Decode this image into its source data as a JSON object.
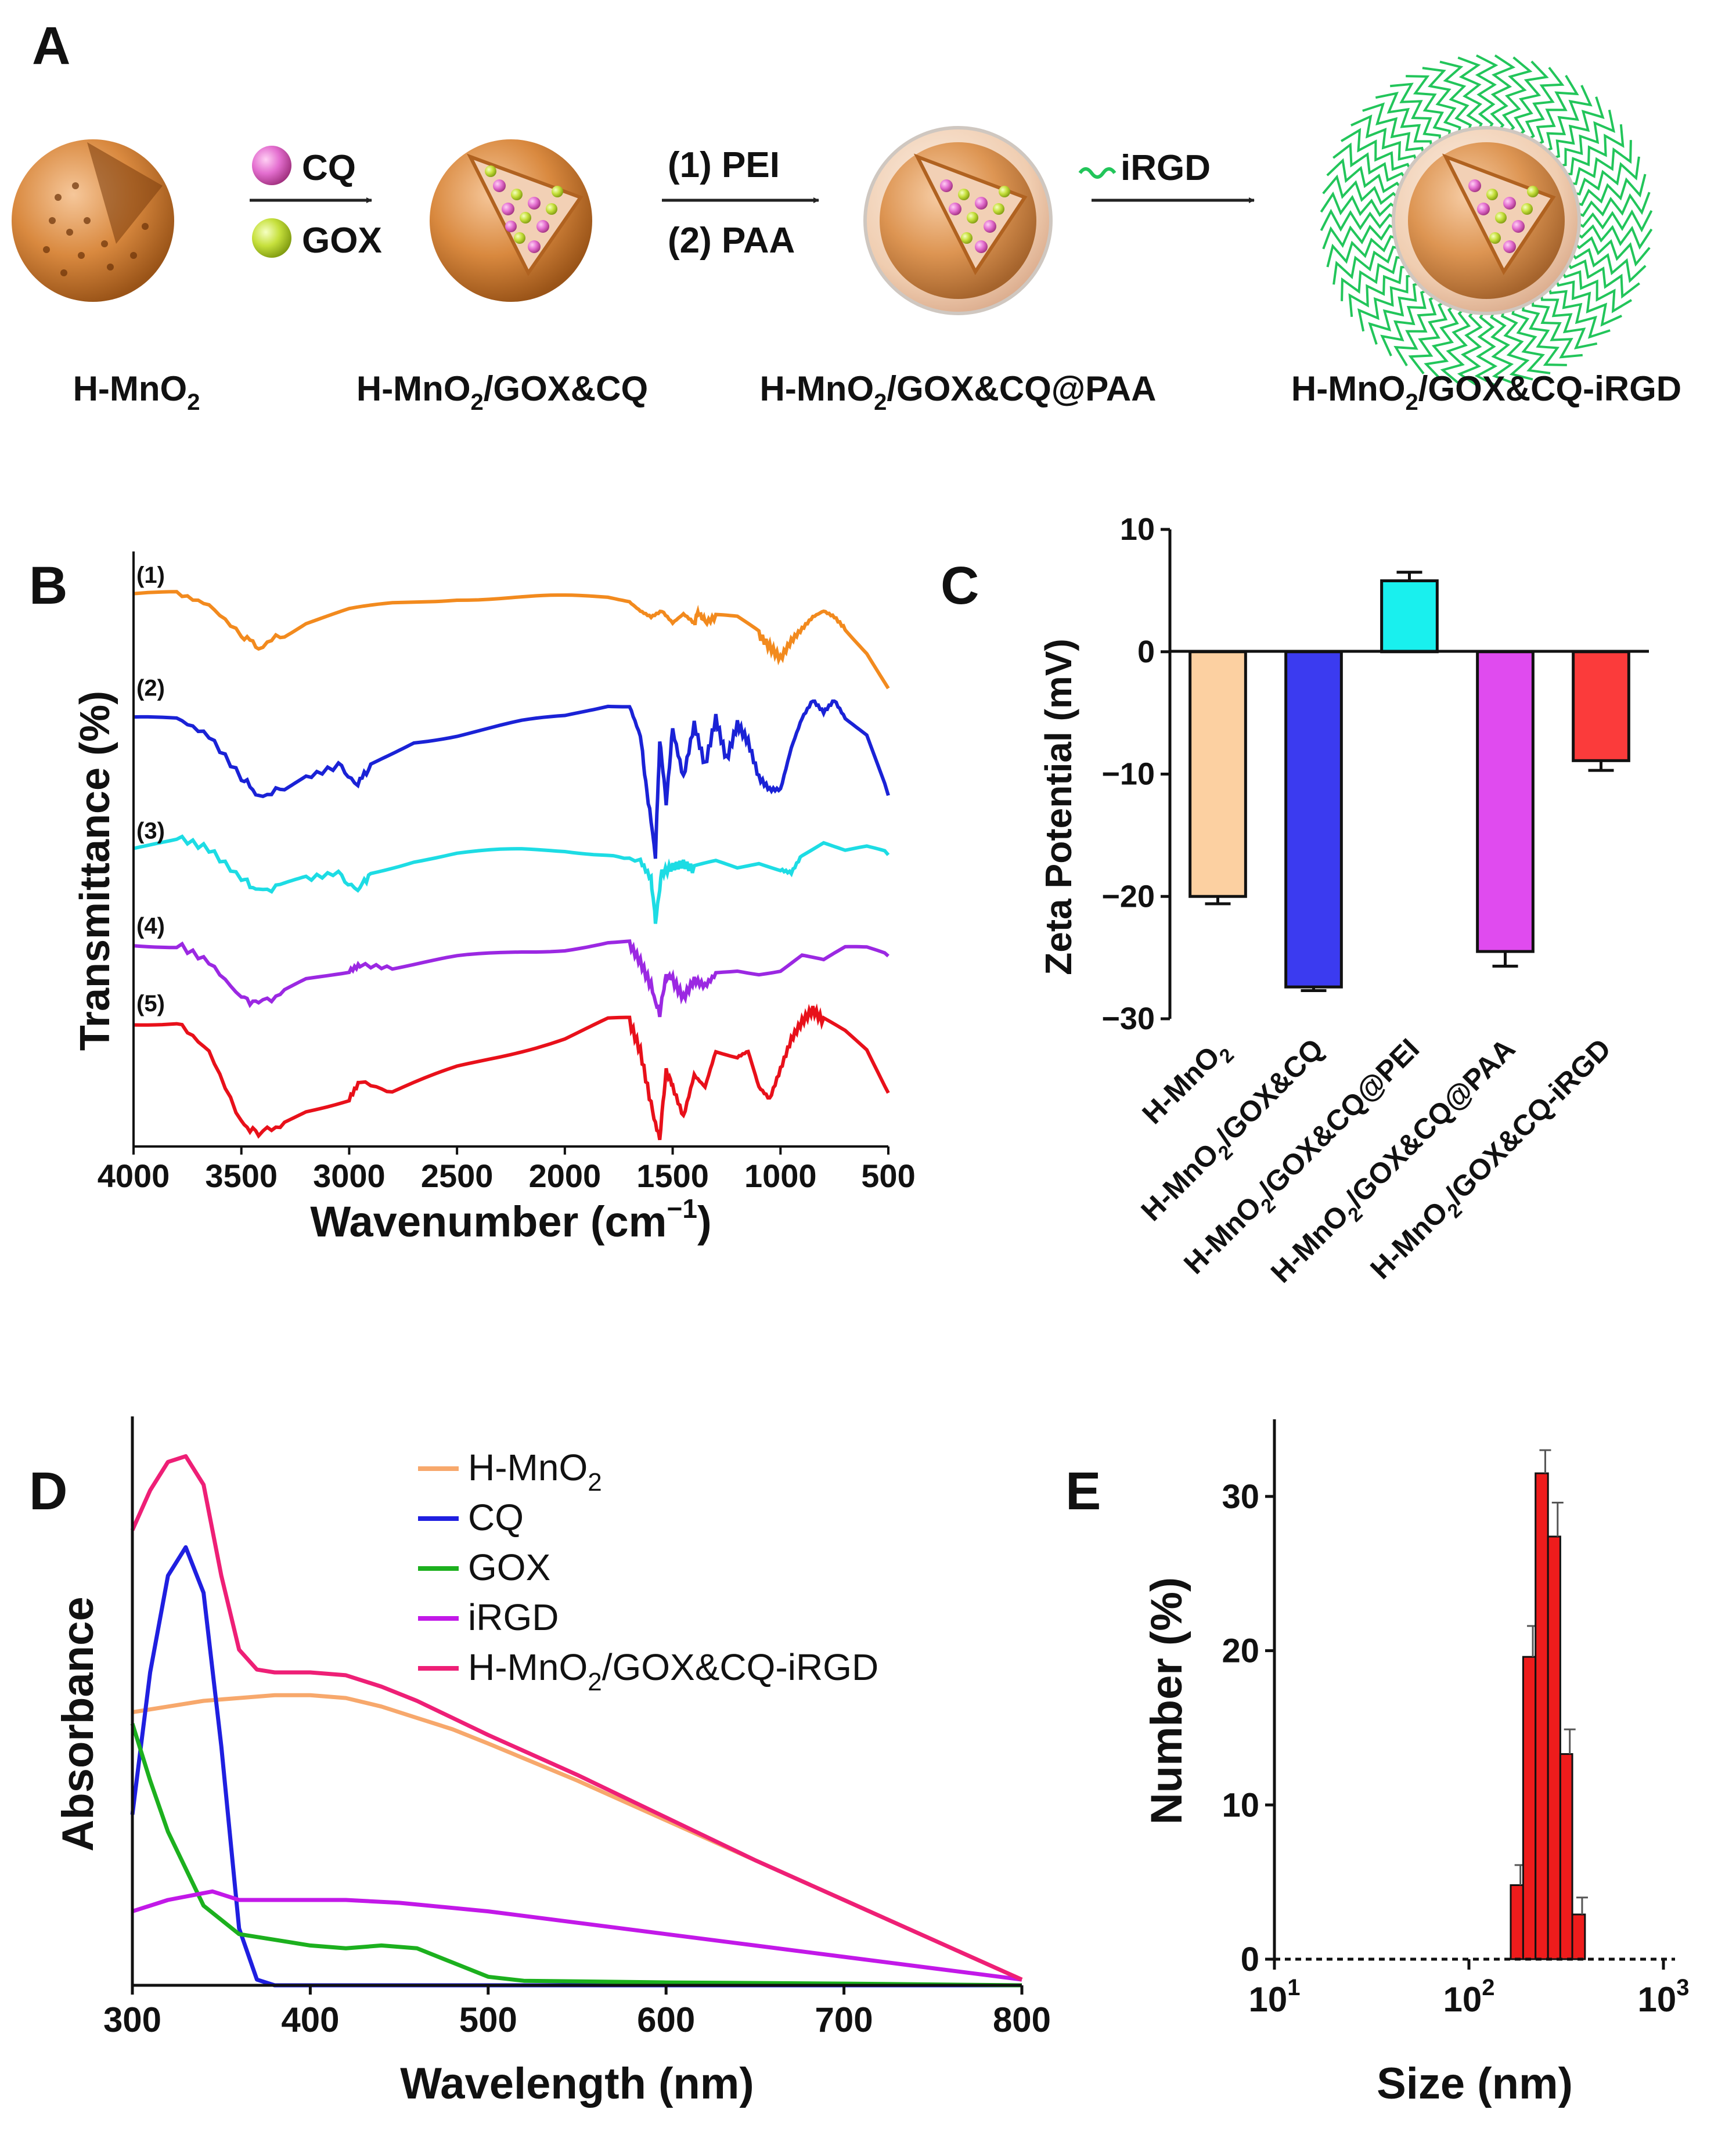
{
  "panel_letters": {
    "a": "A",
    "b": "B",
    "c": "C",
    "d": "D",
    "e": "E"
  },
  "scheme": {
    "reagents_1": {
      "cq": "CQ",
      "gox": "GOX"
    },
    "reagents_2": {
      "line1": "(1) PEI",
      "line2": "(2) PAA"
    },
    "reagents_3": {
      "irgd": "iRGD"
    },
    "particles": [
      {
        "base": "H-MnO",
        "sub": "2",
        "rest": ""
      },
      {
        "base": "H-MnO",
        "sub": "2",
        "rest": "/GOX&CQ"
      },
      {
        "base": "H-MnO",
        "sub": "2",
        "rest": "/GOX&CQ@PAA"
      },
      {
        "base": "H-MnO",
        "sub": "2",
        "rest": "/GOX&CQ-iRGD"
      }
    ],
    "colors": {
      "shell": "#d9893f",
      "cq": "#e46fd0",
      "gox": "#c6e03c",
      "coating": "#f3d6bf",
      "irgd": "#22c55a"
    }
  },
  "chart_data": [
    {
      "panel": "B",
      "type": "line",
      "xlabel": "Wavenumber (cm",
      "xlabel_sup": "−1",
      "xlabel_close": ")",
      "ylabel": "Transmittance (%)",
      "xlim": [
        4000,
        500
      ],
      "x_reversed": true,
      "xticks": [
        4000,
        3500,
        3000,
        2500,
        2000,
        1500,
        1000,
        500
      ],
      "yticks": [],
      "series": [
        {
          "name": "(1)",
          "color": "#f28a1e",
          "offset": 0.93,
          "x": [
            4000,
            3800,
            3650,
            3500,
            3420,
            3300,
            3200,
            3000,
            2800,
            2500,
            2200,
            2000,
            1800,
            1700,
            1650,
            1600,
            1550,
            1500,
            1450,
            1400,
            1380,
            1350,
            1300,
            1200,
            1100,
            1050,
            1000,
            950,
            900,
            850,
            800,
            750,
            700,
            600,
            500
          ],
          "dip": [
            0,
            0,
            0.02,
            0.07,
            0.09,
            0.07,
            0.05,
            0.03,
            0.02,
            0.01,
            0.01,
            0.01,
            0.01,
            0.015,
            0.03,
            0.04,
            0.03,
            0.05,
            0.035,
            0.05,
            0.03,
            0.05,
            0.04,
            0.045,
            0.07,
            0.09,
            0.11,
            0.08,
            0.06,
            0.04,
            0.03,
            0.04,
            0.06,
            0.1,
            0.16
          ]
        },
        {
          "name": "(2)",
          "color": "#1a22d6",
          "offset": 0.74,
          "x": [
            4000,
            3800,
            3650,
            3500,
            3420,
            3300,
            3200,
            3050,
            2960,
            2900,
            2800,
            2700,
            2500,
            2200,
            2000,
            1800,
            1700,
            1650,
            1620,
            1580,
            1560,
            1530,
            1500,
            1450,
            1400,
            1350,
            1300,
            1250,
            1200,
            1150,
            1100,
            1050,
            1000,
            950,
            900,
            850,
            800,
            750,
            700,
            600,
            500
          ],
          "dip": [
            0.02,
            0.02,
            0.05,
            0.12,
            0.15,
            0.14,
            0.12,
            0.1,
            0.13,
            0.1,
            0.08,
            0.06,
            0.05,
            0.03,
            0.02,
            0.0,
            0.0,
            0.05,
            0.14,
            0.25,
            0.06,
            0.16,
            0.04,
            0.12,
            0.03,
            0.1,
            0.02,
            0.09,
            0.03,
            0.06,
            0.12,
            0.14,
            0.14,
            0.07,
            0.02,
            -0.01,
            0.01,
            -0.01,
            0.02,
            0.05,
            0.15
          ]
        },
        {
          "name": "(3)",
          "color": "#1ddce4",
          "offset": 0.5,
          "x": [
            4000,
            3800,
            3650,
            3500,
            3420,
            3300,
            3200,
            3050,
            2960,
            2900,
            2700,
            2500,
            2200,
            2000,
            1800,
            1650,
            1600,
            1580,
            1550,
            1500,
            1450,
            1400,
            1300,
            1200,
            1100,
            1000,
            950,
            900,
            800,
            700,
            600,
            500
          ],
          "dip": [
            0.0,
            -0.02,
            0.0,
            0.05,
            0.07,
            0.06,
            0.05,
            0.04,
            0.07,
            0.04,
            0.02,
            0.01,
            0.005,
            0.005,
            0.01,
            0.02,
            0.05,
            0.12,
            0.04,
            0.03,
            0.025,
            0.035,
            0.025,
            0.035,
            0.025,
            0.035,
            0.04,
            0.01,
            -0.01,
            0.005,
            0.0,
            0.01
          ]
        },
        {
          "name": "(4)",
          "color": "#9b28e2",
          "offset": 0.34,
          "x": [
            4000,
            3800,
            3650,
            3500,
            3420,
            3300,
            3200,
            3000,
            2950,
            2800,
            2500,
            2200,
            2000,
            1800,
            1700,
            1650,
            1600,
            1560,
            1530,
            1500,
            1450,
            1400,
            1350,
            1300,
            1200,
            1100,
            1000,
            900,
            800,
            700,
            600,
            500
          ],
          "dip": [
            0.0,
            0.0,
            0.03,
            0.09,
            0.1,
            0.08,
            0.06,
            0.045,
            0.035,
            0.04,
            0.025,
            0.015,
            0.01,
            0.0,
            0.0,
            0.03,
            0.07,
            0.12,
            0.05,
            0.06,
            0.09,
            0.06,
            0.07,
            0.05,
            0.045,
            0.05,
            0.045,
            0.02,
            0.03,
            0.01,
            0.01,
            0.02
          ]
        },
        {
          "name": "(5)",
          "color": "#e8101a",
          "offset": 0.21,
          "x": [
            4000,
            3800,
            3650,
            3500,
            3420,
            3300,
            3200,
            3000,
            2950,
            2800,
            2500,
            2200,
            2000,
            1800,
            1700,
            1650,
            1600,
            1560,
            1530,
            1500,
            1450,
            1400,
            1350,
            1300,
            1200,
            1150,
            1100,
            1050,
            1000,
            950,
            900,
            850,
            800,
            700,
            600,
            500
          ],
          "dip": [
            0.0,
            0.0,
            0.05,
            0.17,
            0.19,
            0.17,
            0.15,
            0.13,
            0.1,
            0.12,
            0.08,
            0.05,
            0.03,
            0.0,
            0.0,
            0.05,
            0.14,
            0.2,
            0.08,
            0.11,
            0.16,
            0.09,
            0.11,
            0.05,
            0.06,
            0.05,
            0.11,
            0.13,
            0.08,
            0.03,
            0.0,
            -0.02,
            0.0,
            0.02,
            0.05,
            0.12
          ]
        }
      ]
    },
    {
      "panel": "C",
      "type": "bar",
      "ylabel": "Zeta Potential (mV)",
      "ylim": [
        -30,
        10
      ],
      "yticks": [
        10,
        0,
        -10,
        -20,
        -30
      ],
      "categories": [
        {
          "base": "H-MnO",
          "sub": "2",
          "rest": ""
        },
        {
          "base": "H-MnO",
          "sub": "2",
          "rest": "/GOX&CQ"
        },
        {
          "base": "H-MnO",
          "sub": "2",
          "rest": "/GOX&CQ@PEI"
        },
        {
          "base": "H-MnO",
          "sub": "2",
          "rest": "/GOX&CQ@PAA"
        },
        {
          "base": "H-MnO",
          "sub": "2",
          "rest": "/GOX&CQ-iRGD"
        }
      ],
      "values": [
        -20.0,
        -27.4,
        5.8,
        -24.5,
        -8.9
      ],
      "errors": [
        0.6,
        0.3,
        0.7,
        1.2,
        0.8
      ],
      "colors": [
        "#fcd0a1",
        "#3b3bf0",
        "#19f0ee",
        "#e04bef",
        "#fb3b3b"
      ]
    },
    {
      "panel": "D",
      "type": "line",
      "xlabel": "Wavelength (nm)",
      "ylabel": "Absorbance",
      "xlim": [
        300,
        800
      ],
      "ylim": [
        0,
        1
      ],
      "xticks": [
        300,
        400,
        500,
        600,
        700,
        800
      ],
      "yticks": [],
      "legend_position": "top-right",
      "series": [
        {
          "name": "H-MnO",
          "name_sub": "2",
          "name_rest": "",
          "color": "#f7a86c",
          "x": [
            300,
            320,
            340,
            360,
            380,
            400,
            420,
            440,
            460,
            480,
            500,
            550,
            600,
            650,
            700,
            750,
            800
          ],
          "y": [
            0.48,
            0.49,
            0.5,
            0.505,
            0.51,
            0.51,
            0.505,
            0.49,
            0.47,
            0.45,
            0.425,
            0.36,
            0.29,
            0.22,
            0.15,
            0.08,
            0.01
          ]
        },
        {
          "name": "CQ",
          "name_sub": "",
          "name_rest": "",
          "color": "#1f1fe0",
          "x": [
            300,
            310,
            320,
            330,
            340,
            350,
            360,
            370,
            380,
            400,
            500,
            600,
            700,
            800
          ],
          "y": [
            0.3,
            0.55,
            0.72,
            0.77,
            0.69,
            0.42,
            0.1,
            0.01,
            0.0,
            0.0,
            0.0,
            0.0,
            0.0,
            0.0
          ]
        },
        {
          "name": "GOX",
          "name_sub": "",
          "name_rest": "",
          "color": "#1cb01e",
          "x": [
            300,
            310,
            320,
            340,
            360,
            380,
            400,
            420,
            440,
            460,
            480,
            500,
            520,
            600,
            700,
            800
          ],
          "y": [
            0.46,
            0.36,
            0.27,
            0.14,
            0.09,
            0.08,
            0.07,
            0.065,
            0.07,
            0.065,
            0.04,
            0.015,
            0.008,
            0.005,
            0.003,
            0.0
          ]
        },
        {
          "name": "iRGD",
          "name_sub": "",
          "name_rest": "",
          "color": "#c218e8",
          "x": [
            300,
            320,
            345,
            360,
            380,
            400,
            420,
            450,
            500,
            550,
            600,
            650,
            700,
            750,
            800
          ],
          "y": [
            0.13,
            0.15,
            0.165,
            0.15,
            0.15,
            0.15,
            0.15,
            0.145,
            0.13,
            0.11,
            0.09,
            0.07,
            0.05,
            0.03,
            0.01
          ]
        },
        {
          "name": "H-MnO",
          "name_sub": "2",
          "name_rest": "/GOX&CQ-iRGD",
          "color": "#ee1f76",
          "x": [
            300,
            310,
            320,
            330,
            340,
            350,
            360,
            370,
            380,
            400,
            420,
            440,
            460,
            480,
            500,
            550,
            600,
            650,
            700,
            750,
            800
          ],
          "y": [
            0.8,
            0.87,
            0.92,
            0.93,
            0.88,
            0.72,
            0.59,
            0.555,
            0.55,
            0.55,
            0.545,
            0.525,
            0.5,
            0.47,
            0.44,
            0.37,
            0.295,
            0.22,
            0.15,
            0.08,
            0.01
          ]
        }
      ]
    },
    {
      "panel": "E",
      "type": "bar",
      "xlabel": "Size (nm)",
      "ylabel": "Number (%)",
      "xscale": "log",
      "xlim": [
        10,
        1000
      ],
      "xticks": [
        {
          "base": "10",
          "exp": "1"
        },
        {
          "base": "10",
          "exp": "2"
        },
        {
          "base": "10",
          "exp": "3"
        }
      ],
      "ylim": [
        0,
        35
      ],
      "yticks": [
        0,
        10,
        20,
        30
      ],
      "bar_color": "#ee1c1c",
      "bin_edges": [
        164,
        190,
        220,
        255,
        295,
        340,
        395
      ],
      "values": [
        4.8,
        19.6,
        31.5,
        27.4,
        13.3,
        2.9
      ],
      "errors": [
        1.3,
        2.0,
        1.5,
        2.2,
        1.6,
        1.1
      ]
    }
  ]
}
